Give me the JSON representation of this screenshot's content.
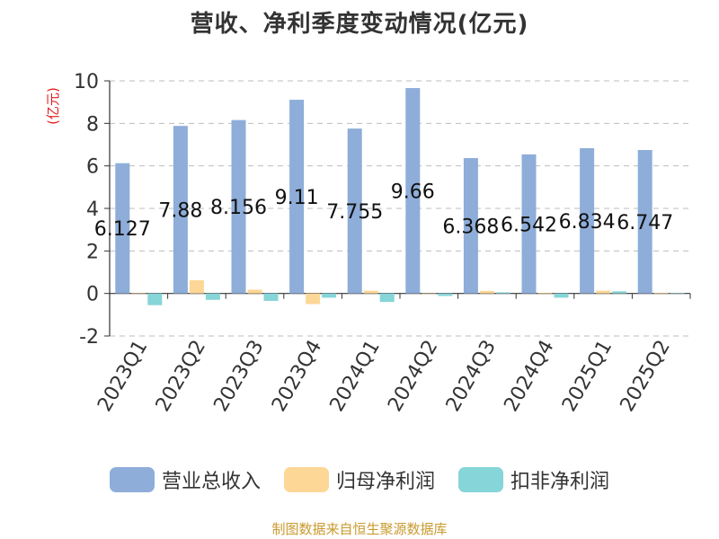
{
  "chart_data": {
    "type": "bar",
    "title": "营收、净利季度变动情况(亿元)",
    "ylabel": "(亿元)",
    "xlabel": "",
    "ylim": [
      -2,
      10
    ],
    "yticks": [
      -2,
      0,
      2,
      4,
      6,
      8,
      10
    ],
    "grid": true,
    "legend_position": "bottom",
    "categories": [
      "2023Q1",
      "2023Q2",
      "2023Q3",
      "2023Q4",
      "2024Q1",
      "2024Q2",
      "2024Q3",
      "2024Q4",
      "2025Q1",
      "2025Q2"
    ],
    "series": [
      {
        "name": "营业总收入",
        "color": "#8eadd9",
        "values": [
          6.127,
          7.88,
          8.156,
          9.11,
          7.755,
          9.66,
          6.368,
          6.542,
          6.834,
          6.747
        ],
        "labels": [
          "6.127",
          "7.88",
          "8.156",
          "9.11",
          "7.755",
          "9.66",
          "6.368",
          "6.542",
          "6.834",
          "6.747"
        ]
      },
      {
        "name": "归母净利润",
        "color": "#fdd796",
        "values": [
          0.02,
          0.62,
          0.18,
          -0.5,
          0.13,
          -0.02,
          0.12,
          0.03,
          0.13,
          0.03
        ]
      },
      {
        "name": "扣非净利润",
        "color": "#86d5d8",
        "values": [
          -0.55,
          -0.3,
          -0.35,
          -0.2,
          -0.4,
          -0.12,
          0.05,
          -0.2,
          0.1,
          0.01
        ]
      }
    ]
  },
  "footer": {
    "source": "制图数据来自恒生聚源数据库"
  }
}
